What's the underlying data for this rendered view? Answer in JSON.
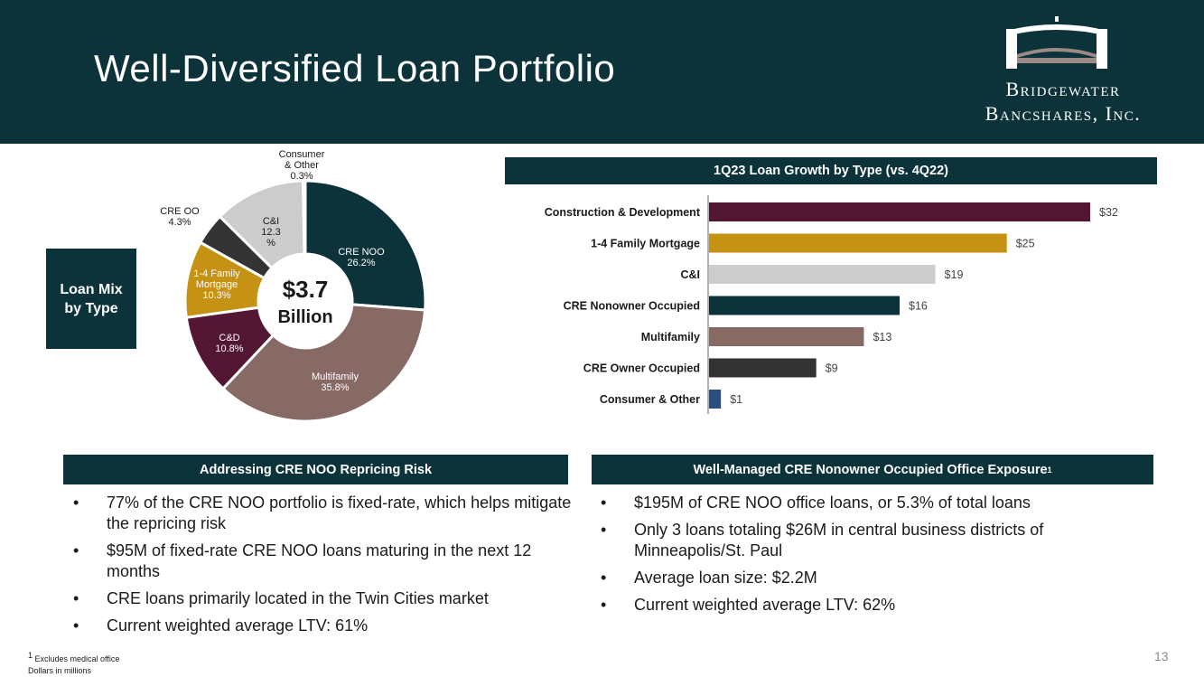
{
  "header": {
    "title": "Well-Diversified Loan Portfolio",
    "logo_line1": "Bridgewater",
    "logo_line2": "Bancshares, Inc."
  },
  "mix_box": {
    "label": "Loan Mix by Type"
  },
  "chart_data": [
    {
      "type": "pie",
      "center_label": {
        "value": "$3.7",
        "unit": "Billion"
      },
      "slices": [
        {
          "label": "CRE NOO",
          "value_label": "26.2%",
          "value": 26.2,
          "color": "#0c3339"
        },
        {
          "label": "Multifamily",
          "value_label": "35.8%",
          "value": 35.8,
          "color": "#876a64"
        },
        {
          "label": "C&D",
          "value_label": "10.8%",
          "value": 10.8,
          "color": "#531734"
        },
        {
          "label": "1-4 Family Mortgage",
          "value_label": "10.3%",
          "value": 10.3,
          "color": "#c69214"
        },
        {
          "label": "CRE OO",
          "value_label": "4.3%",
          "value": 4.3,
          "color": "#333333"
        },
        {
          "label": "C&I",
          "value_label": "12.3 %",
          "value": 12.3,
          "color": "#cccccc"
        },
        {
          "label": "Consumer & Other",
          "value_label": "0.3%",
          "value": 0.3,
          "color": "#2b4f7e"
        }
      ]
    },
    {
      "type": "bar",
      "orientation": "horizontal",
      "title": "1Q23 Loan Growth by Type (vs. 4Q22)",
      "categories": [
        "Construction & Development",
        "1-4 Family Mortgage",
        "C&I",
        "CRE Nonowner Occupied",
        "Multifamily",
        "CRE Owner Occupied",
        "Consumer & Other"
      ],
      "values": [
        32,
        25,
        19,
        16,
        13,
        9,
        1
      ],
      "value_labels": [
        "$32",
        "$25",
        "$19",
        "$16",
        "$13",
        "$9",
        "$1"
      ],
      "colors": [
        "#531734",
        "#c69214",
        "#cccccc",
        "#0c3339",
        "#876a64",
        "#333333",
        "#2b4f7e"
      ],
      "xlim": [
        0,
        35
      ]
    }
  ],
  "left_section": {
    "title": "Addressing CRE NOO Repricing Risk",
    "bullets": [
      "77% of the CRE NOO portfolio is fixed-rate, which helps mitigate the repricing risk",
      "$95M of fixed-rate CRE NOO loans maturing in the next 12 months",
      "CRE loans primarily located in the Twin Cities market",
      "Current weighted average LTV: 61%"
    ]
  },
  "right_section": {
    "title": "Well-Managed CRE Nonowner Occupied Office Exposure",
    "title_sup": "1",
    "bullets": [
      "$195M of CRE NOO office loans, or 5.3% of total loans",
      "Only 3 loans totaling $26M in central business districts of Minneapolis/St. Paul",
      "Average loan size: $2.2M",
      "Current weighted average LTV: 62%"
    ]
  },
  "footnote": {
    "line1_sup": "1",
    "line1": " Excludes medical office",
    "line2": "Dollars in millions"
  },
  "page_number": "13"
}
